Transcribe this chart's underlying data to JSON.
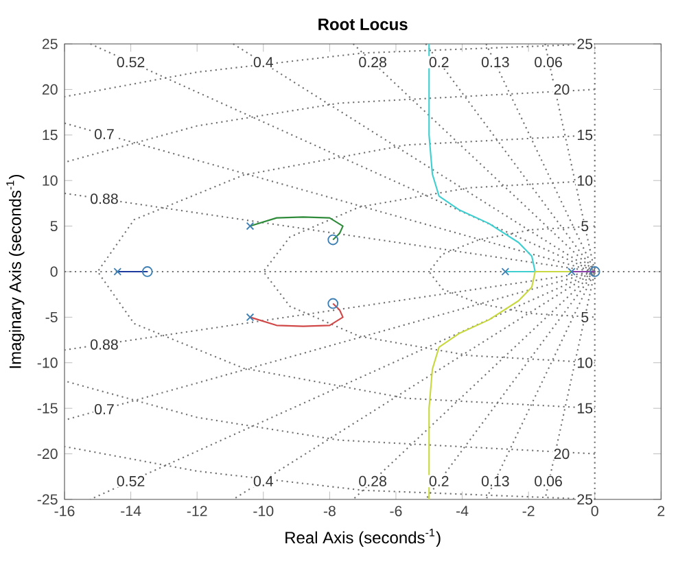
{
  "chart_data": {
    "type": "line",
    "title": "Root Locus",
    "xlabel": "Real Axis (seconds$^{-1}$)",
    "ylabel": "Imaginary Axis (seconds$^{-1}$)",
    "xlim": [
      -16,
      2
    ],
    "xticks": [
      -16,
      -14,
      -12,
      -10,
      -8,
      -6,
      -4,
      -2,
      0,
      2
    ],
    "ylim": [
      -25,
      25
    ],
    "yticks": [
      -25,
      -20,
      -15,
      -10,
      -5,
      0,
      5,
      10,
      15,
      20,
      25
    ],
    "marker": "none",
    "series": [
      {
        "x": [
          0,
          -1.9,
          -3.5,
          -4.6,
          -5,
          -4.6,
          -3.5,
          -1.9,
          0
        ],
        "values": [
          5,
          4.6,
          3.5,
          1.9,
          0,
          -1.9,
          -3.5,
          -4.6,
          -5
        ],
        "color": "#707070",
        "line_style": "dotted"
      },
      {
        "x": [
          0,
          -3.8,
          -7.1,
          -9.2,
          -10,
          -9.2,
          -7.1,
          -3.8,
          0
        ],
        "values": [
          10,
          9.2,
          7.1,
          3.8,
          0,
          -3.8,
          -7.1,
          -9.2,
          -10
        ],
        "color": "#707070",
        "line_style": "dotted"
      },
      {
        "x": [
          0,
          -5.7,
          -10.6,
          -13.9,
          -15,
          -13.9,
          -10.6,
          -5.7,
          0
        ],
        "values": [
          15,
          13.9,
          10.6,
          5.7,
          0,
          -5.7,
          -10.6,
          -13.9,
          -15
        ],
        "color": "#707070",
        "line_style": "dotted"
      },
      {
        "x": [
          0,
          -7.7,
          -12,
          -16
        ],
        "values": [
          20,
          18.5,
          16,
          12
        ],
        "color": "#707070",
        "line_style": "dotted"
      },
      {
        "x": [
          0,
          -7.7,
          -12,
          -16
        ],
        "values": [
          -20,
          -18.5,
          -16,
          -12
        ],
        "color": "#707070",
        "line_style": "dotted"
      },
      {
        "x": [
          0,
          -7,
          -12,
          -16
        ],
        "values": [
          25,
          24,
          21.9,
          19.2
        ],
        "color": "#707070",
        "line_style": "dotted"
      },
      {
        "x": [
          0,
          -7,
          -12,
          -16
        ],
        "values": [
          -25,
          -24,
          -21.9,
          -19.2
        ],
        "color": "#707070",
        "line_style": "dotted"
      },
      {
        "x": [
          -16,
          0,
          -16
        ],
        "values": [
          8.6,
          0,
          -8.6
        ],
        "color": "#707070",
        "line_style": "dotted"
      },
      {
        "x": [
          -16,
          0,
          -16
        ],
        "values": [
          16.3,
          0,
          -16.3
        ],
        "color": "#707070",
        "line_style": "dotted"
      },
      {
        "x": [
          -15.22,
          0,
          -15.22
        ],
        "values": [
          25,
          0,
          -25
        ],
        "color": "#707070",
        "line_style": "dotted"
      },
      {
        "x": [
          -10.91,
          0,
          -10.91
        ],
        "values": [
          25,
          0,
          -25
        ],
        "color": "#707070",
        "line_style": "dotted"
      },
      {
        "x": [
          -7.29,
          0,
          -7.29
        ],
        "values": [
          25,
          0,
          -25
        ],
        "color": "#707070",
        "line_style": "dotted"
      },
      {
        "x": [
          -5.1,
          0,
          -5.1
        ],
        "values": [
          25,
          0,
          -25
        ],
        "color": "#707070",
        "line_style": "dotted"
      },
      {
        "x": [
          -3.28,
          0,
          -3.28
        ],
        "values": [
          25,
          0,
          -25
        ],
        "color": "#707070",
        "line_style": "dotted"
      },
      {
        "x": [
          -1.5,
          0,
          -1.5
        ],
        "values": [
          25,
          0,
          -25
        ],
        "color": "#707070",
        "line_style": "dotted"
      },
      {
        "x": [
          -16,
          2
        ],
        "values": [
          0,
          0
        ],
        "color": "#707070",
        "line_style": "dotted"
      },
      {
        "x": [
          0,
          0
        ],
        "values": [
          -25,
          25
        ],
        "color": "#707070",
        "line_style": "dotted"
      },
      {
        "x": [
          -14.4,
          -13.5
        ],
        "values": [
          0,
          0
        ],
        "color": "#1f3a9f"
      },
      {
        "x": [
          -10.4,
          -9.6,
          -8.8,
          -8.0,
          -7.6,
          -7.7,
          -7.9
        ],
        "values": [
          5,
          5.9,
          6.0,
          5.9,
          5.0,
          4.2,
          3.5
        ],
        "color": "#2e8b3a"
      },
      {
        "x": [
          -10.4,
          -9.6,
          -8.8,
          -8.0,
          -7.6,
          -7.7,
          -7.9
        ],
        "values": [
          -5,
          -5.9,
          -6.0,
          -5.9,
          -5.0,
          -4.2,
          -3.5
        ],
        "color": "#d04848"
      },
      {
        "x": [
          -2.7,
          -1.8,
          -1.9,
          -2.3,
          -3.2,
          -4.1,
          -4.7,
          -4.9,
          -5.0,
          -5.0
        ],
        "values": [
          0,
          0,
          1.7,
          3.2,
          5.3,
          6.8,
          8.3,
          10.7,
          15,
          25
        ],
        "color": "#40cfd0"
      },
      {
        "x": [
          -0.7,
          -1.8,
          -1.9,
          -2.3,
          -3.2,
          -4.1,
          -4.7,
          -4.9,
          -5.0,
          -5.0
        ],
        "values": [
          0,
          0,
          -1.7,
          -3.2,
          -5.3,
          -6.8,
          -8.3,
          -10.7,
          -15,
          -25
        ],
        "color": "#c8d840"
      },
      {
        "x": [
          -0.7,
          0
        ],
        "values": [
          0,
          0
        ],
        "color": "#8a3fa8"
      },
      {
        "type": "scatter",
        "marker": "cross",
        "x": [
          -14.4,
          -10.4,
          -10.4,
          -2.7,
          -0.7
        ],
        "values": [
          0,
          5,
          -5,
          0,
          0
        ],
        "color": "#3c7fb4"
      },
      {
        "type": "scatter",
        "marker": "circle",
        "x": [
          -13.5,
          -7.9,
          -7.9,
          0
        ],
        "values": [
          0,
          3.5,
          -3.5,
          0
        ],
        "color": "#3c7fb4"
      }
    ],
    "annotations": [
      {
        "text": "0.52",
        "x": -14,
        "y": 23
      },
      {
        "text": "0.4",
        "x": -10,
        "y": 23
      },
      {
        "text": "0.28",
        "x": -6.7,
        "y": 23
      },
      {
        "text": "0.2",
        "x": -4.7,
        "y": 23
      },
      {
        "text": "0.13",
        "x": -3,
        "y": 23
      },
      {
        "text": "0.06",
        "x": -1.4,
        "y": 23
      },
      {
        "text": "0.7",
        "x": -14.8,
        "y": 15.1
      },
      {
        "text": "0.88",
        "x": -14.8,
        "y": 8
      },
      {
        "text": "0.88",
        "x": -14.8,
        "y": -8
      },
      {
        "text": "0.7",
        "x": -14.8,
        "y": -15.1
      },
      {
        "text": "0.52",
        "x": -14,
        "y": -23
      },
      {
        "text": "0.4",
        "x": -10,
        "y": -23
      },
      {
        "text": "0.28",
        "x": -6.7,
        "y": -23
      },
      {
        "text": "0.2",
        "x": -4.7,
        "y": -23
      },
      {
        "text": "0.13",
        "x": -3,
        "y": -23
      },
      {
        "text": "0.06",
        "x": -1.4,
        "y": -23
      },
      {
        "text": "25",
        "x": -0.3,
        "y": 25
      },
      {
        "text": "20",
        "x": -1,
        "y": 20
      },
      {
        "text": "15",
        "x": -0.3,
        "y": 15
      },
      {
        "text": "10",
        "x": -0.3,
        "y": 10
      },
      {
        "text": "5",
        "x": -0.3,
        "y": 5
      },
      {
        "text": "5",
        "x": -0.3,
        "y": -5
      },
      {
        "text": "10",
        "x": -0.3,
        "y": -10
      },
      {
        "text": "15",
        "x": -0.3,
        "y": -15
      },
      {
        "text": "20",
        "x": -1,
        "y": -20
      },
      {
        "text": "25",
        "x": -0.3,
        "y": -25
      }
    ]
  }
}
